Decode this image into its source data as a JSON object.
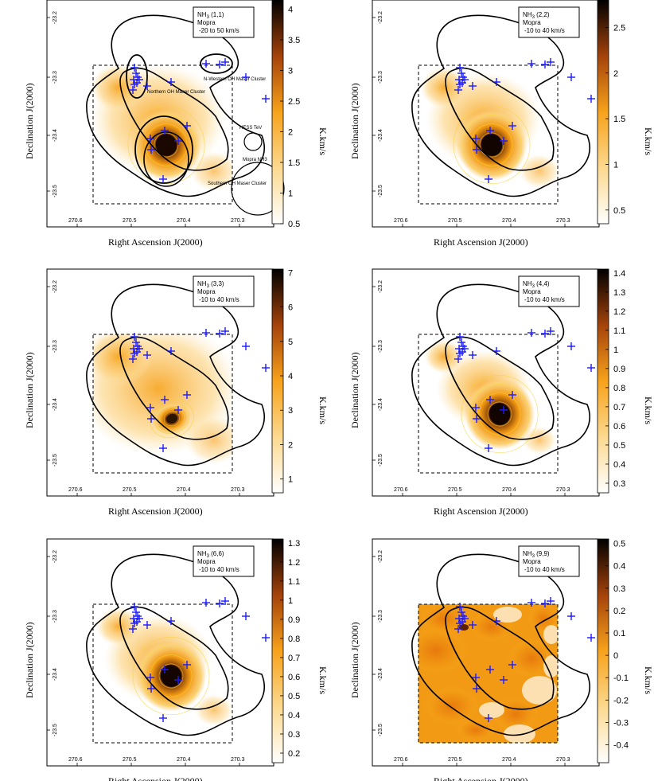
{
  "figure": {
    "xlabel": "Right Ascension J(2000)",
    "ylabel": "Declination J(2000)",
    "cbar_label": "K.km/s",
    "ra_ticks": [
      "270.6",
      "270.5",
      "270.4",
      "270.3"
    ],
    "dec_ticks": [
      "-23.2",
      "-23.3",
      "-23.4",
      "-23.5"
    ],
    "telescope": "Mopra"
  },
  "panels": [
    {
      "id": "nh3-1-1",
      "transition_prefix": "NH",
      "transition_sub": "3",
      "transition_suffix": " (1,1)",
      "telescope": "Mopra",
      "vel_range": "-20 to 50 km/s",
      "cbar_ticks": [
        "4",
        "3.5",
        "3",
        "2.5",
        "2",
        "1.5",
        "1",
        "0.5"
      ],
      "cbar_range": [
        0.5,
        4.15
      ],
      "peak": "#1a0800",
      "annotations": [
        "Northern OH Maser Cluster",
        "N-Western OH Maser Cluster",
        "Mopra NH3",
        "HESS TeV",
        "Southern OH Maser Cluster"
      ]
    },
    {
      "id": "nh3-2-2",
      "transition_prefix": "NH",
      "transition_sub": "3",
      "transition_suffix": " (2,2)",
      "telescope": "Mopra",
      "vel_range": "-10 to 40 km/s",
      "cbar_ticks": [
        "2.5",
        "2",
        "1.5",
        "1",
        "0.5"
      ],
      "cbar_range": [
        0.35,
        2.8
      ],
      "peak": "#120400"
    },
    {
      "id": "nh3-3-3",
      "transition_prefix": "NH",
      "transition_sub": "3",
      "transition_suffix": " (3,3)",
      "telescope": "Mopra",
      "vel_range": "-10 to 40 km/s",
      "cbar_ticks": [
        "7",
        "6",
        "5",
        "4",
        "3",
        "2",
        "1"
      ],
      "cbar_range": [
        0.6,
        7.1
      ],
      "peak": "#2a1600"
    },
    {
      "id": "nh3-4-4",
      "transition_prefix": "NH",
      "transition_sub": "3",
      "transition_suffix": " (4,4)",
      "telescope": "Mopra",
      "vel_range": "-10 to 40 km/s",
      "cbar_ticks": [
        "1.4",
        "1.3",
        "1.2",
        "1.1",
        "1",
        "0.9",
        "0.8",
        "0.7",
        "0.6",
        "0.5",
        "0.4",
        "0.3"
      ],
      "cbar_range": [
        0.25,
        1.42
      ],
      "peak": "#120400"
    },
    {
      "id": "nh3-6-6",
      "transition_prefix": "NH",
      "transition_sub": "3",
      "transition_suffix": " (6,6)",
      "telescope": "Mopra",
      "vel_range": "-10 to 40 km/s",
      "cbar_ticks": [
        "1.3",
        "1.2",
        "1.1",
        "1",
        "0.9",
        "0.8",
        "0.7",
        "0.6",
        "0.5",
        "0.4",
        "0.3",
        "0.2"
      ],
      "cbar_range": [
        0.15,
        1.32
      ],
      "peak": "#140500"
    },
    {
      "id": "nh3-9-9",
      "transition_prefix": "NH",
      "transition_sub": "3",
      "transition_suffix": " (9,9)",
      "telescope": "Mopra",
      "vel_range": "-10 to 40 km/s",
      "cbar_ticks": [
        "0.5",
        "0.4",
        "0.3",
        "0.2",
        "0.1",
        "0",
        "-0.1",
        "-0.2",
        "-0.3",
        "-0.4"
      ],
      "cbar_range": [
        -0.48,
        0.52
      ],
      "peak": "#3a1500"
    }
  ],
  "colors": {
    "map_low": "#ffffff",
    "map_mid": "#f7a21b",
    "map_high": "#000000",
    "maser_marker": "#1a1aff",
    "contour": "#000000"
  }
}
